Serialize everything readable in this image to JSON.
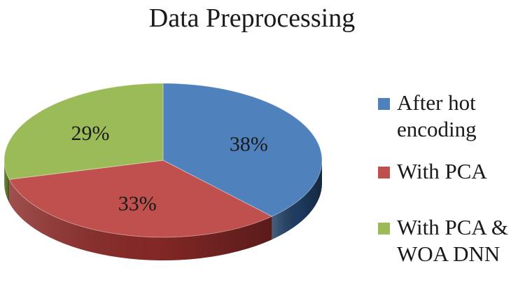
{
  "chart_data": {
    "type": "pie",
    "title": "Data Preprocessing",
    "series": [
      {
        "name": "After hot encoding",
        "value": 38,
        "label": "38%",
        "color": "#4f81bd",
        "side_color": "#1f3d63"
      },
      {
        "name": "With PCA",
        "value": 33,
        "label": "33%",
        "color": "#c0504d",
        "side_color": "#8a2a28"
      },
      {
        "name": "With PCA & WOA DNN",
        "value": 29,
        "label": "29%",
        "color": "#9bbb59",
        "side_color": "#62792e"
      }
    ],
    "legend_position": "right"
  }
}
